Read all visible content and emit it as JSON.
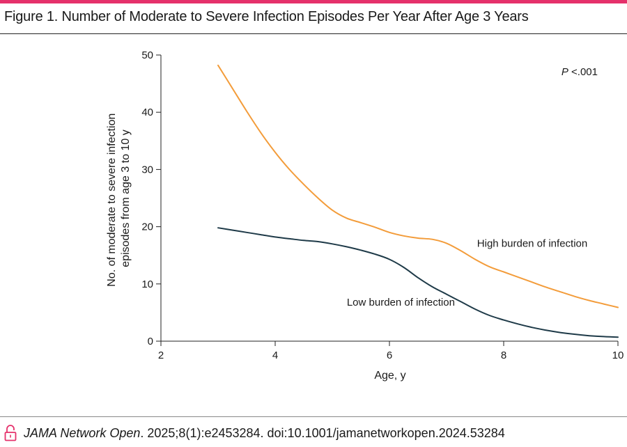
{
  "figure": {
    "title": "Figure 1. Number of Moderate to Severe Infection Episodes Per Year After Age 3 Years",
    "accent_color": "#e5316b"
  },
  "chart_data": {
    "type": "line",
    "title": "Figure 1. Number of Moderate to Severe Infection Episodes Per Year After Age 3 Years",
    "xlabel": "Age, y",
    "ylabel": [
      "No. of moderate to severe infection",
      "episodes from age 3 to 10 y"
    ],
    "xlim": [
      2,
      10
    ],
    "ylim": [
      0,
      50
    ],
    "xticks": [
      2,
      4,
      6,
      8,
      10
    ],
    "yticks": [
      0,
      10,
      20,
      30,
      40,
      50
    ],
    "xtick_labels": [
      "2",
      "4",
      "6",
      "8",
      "10"
    ],
    "ytick_labels": [
      "0",
      "10",
      "20",
      "30",
      "40",
      "50"
    ],
    "grid": false,
    "annotation": {
      "p_label": "P",
      "p_value": " <.001"
    },
    "series": [
      {
        "name": "High burden of infection",
        "color": "#f39c3a",
        "x": [
          3,
          3.25,
          3.5,
          3.75,
          4,
          4.25,
          4.5,
          4.75,
          5,
          5.25,
          5.5,
          5.75,
          6,
          6.25,
          6.5,
          6.75,
          7,
          7.25,
          7.5,
          7.75,
          8,
          8.25,
          8.5,
          8.75,
          9,
          9.25,
          9.5,
          9.75,
          10
        ],
        "values": [
          48.2,
          44.2,
          40.2,
          36.4,
          33.0,
          30.0,
          27.4,
          25.0,
          22.9,
          21.5,
          20.7,
          19.9,
          19.0,
          18.4,
          18.0,
          17.8,
          17.1,
          15.8,
          14.3,
          13.0,
          12.1,
          11.2,
          10.3,
          9.4,
          8.6,
          7.8,
          7.1,
          6.5,
          5.9
        ]
      },
      {
        "name": "Low burden of infection",
        "color": "#1e3a48",
        "x": [
          3,
          3.25,
          3.5,
          3.75,
          4,
          4.25,
          4.5,
          4.75,
          5,
          5.25,
          5.5,
          5.75,
          6,
          6.25,
          6.5,
          6.75,
          7,
          7.25,
          7.5,
          7.75,
          8,
          8.25,
          8.5,
          8.75,
          9,
          9.25,
          9.5,
          9.75,
          10
        ],
        "values": [
          19.8,
          19.4,
          19.0,
          18.6,
          18.2,
          17.9,
          17.6,
          17.4,
          17.0,
          16.5,
          15.9,
          15.2,
          14.3,
          12.9,
          11.1,
          9.5,
          8.2,
          6.9,
          5.6,
          4.5,
          3.7,
          3.0,
          2.4,
          1.9,
          1.5,
          1.2,
          0.95,
          0.8,
          0.7
        ]
      }
    ],
    "series_labels": [
      {
        "text": "High burden of infection",
        "x": 8.5,
        "y": 16.5
      },
      {
        "text": "Low burden of infection",
        "x": 6.2,
        "y": 6.2
      }
    ]
  },
  "footer": {
    "journal": "JAMA Network Open",
    "citation": ". 2025;8(1):e2453284. doi:10.1001/jamanetworkopen.2024.53284"
  }
}
